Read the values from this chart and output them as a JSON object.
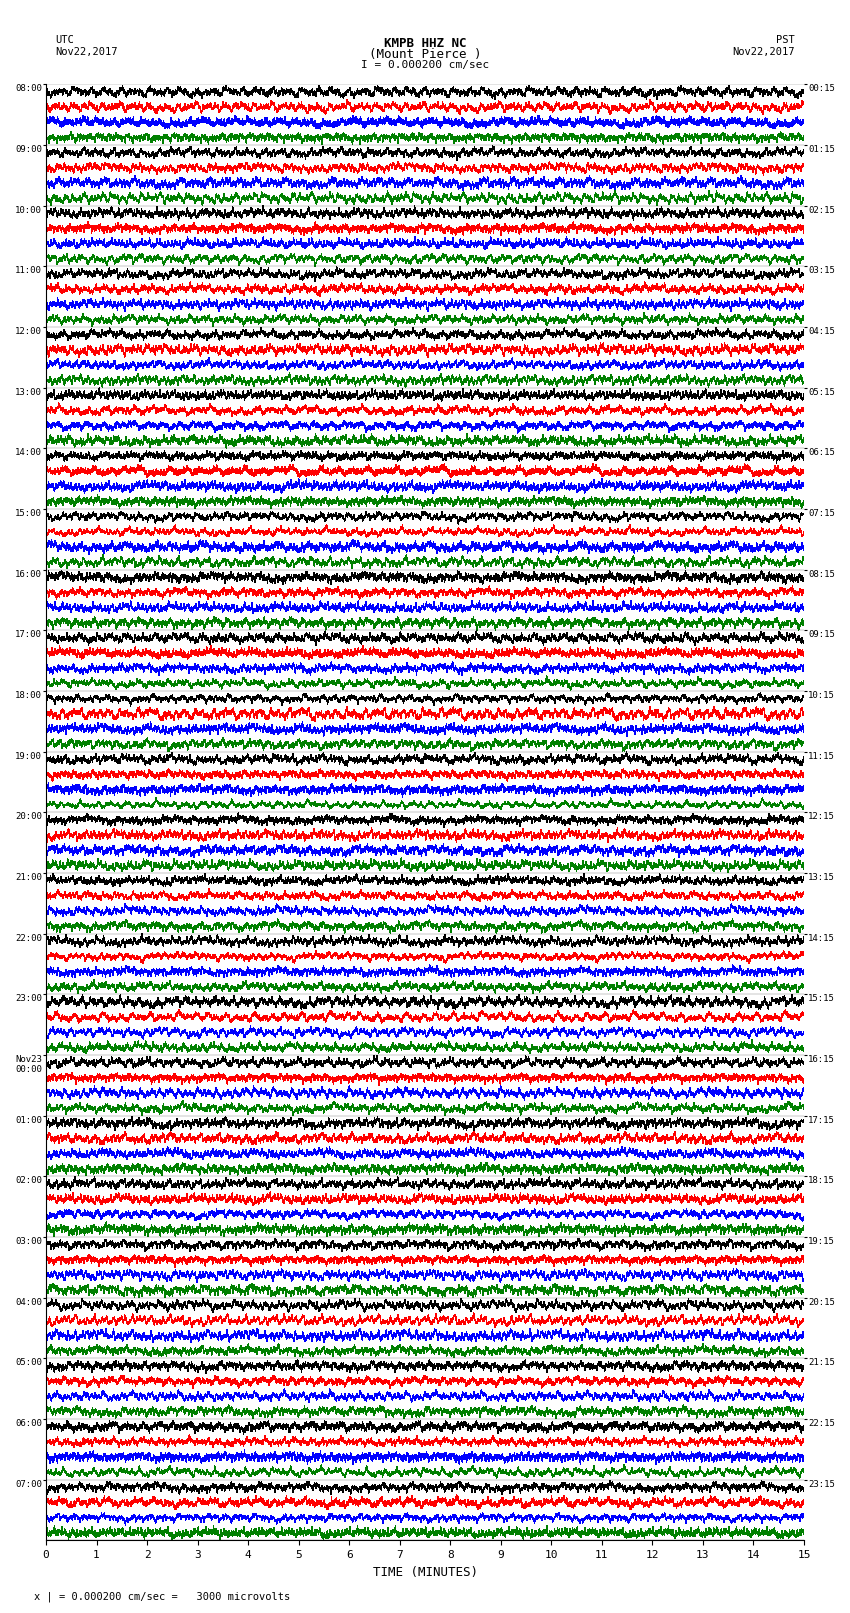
{
  "title_line1": "KMPB HHZ NC",
  "title_line2": "(Mount Pierce )",
  "title_line3": "I = 0.000200 cm/sec",
  "utc_label": "UTC\nNov22,2017",
  "pst_label": "PST\nNov22,2017",
  "xlabel": "TIME (MINUTES)",
  "footnote": "x | = 0.000200 cm/sec =   3000 microvolts",
  "left_times": [
    "08:00",
    "09:00",
    "10:00",
    "11:00",
    "12:00",
    "13:00",
    "14:00",
    "15:00",
    "16:00",
    "17:00",
    "18:00",
    "19:00",
    "20:00",
    "21:00",
    "22:00",
    "23:00",
    "Nov23\n00:00",
    "01:00",
    "02:00",
    "03:00",
    "04:00",
    "05:00",
    "06:00",
    "07:00"
  ],
  "right_times": [
    "00:15",
    "01:15",
    "02:15",
    "03:15",
    "04:15",
    "05:15",
    "06:15",
    "07:15",
    "08:15",
    "09:15",
    "10:15",
    "11:15",
    "12:15",
    "13:15",
    "14:15",
    "15:15",
    "16:15",
    "17:15",
    "18:15",
    "19:15",
    "20:15",
    "21:15",
    "22:15",
    "23:15"
  ],
  "colors": [
    "black",
    "red",
    "blue",
    "green"
  ],
  "n_rows": 24,
  "n_traces_per_row": 4,
  "time_minutes": 15,
  "background_color": "white",
  "xlim": [
    0,
    15
  ],
  "figwidth": 8.5,
  "figheight": 16.13,
  "dpi": 100
}
